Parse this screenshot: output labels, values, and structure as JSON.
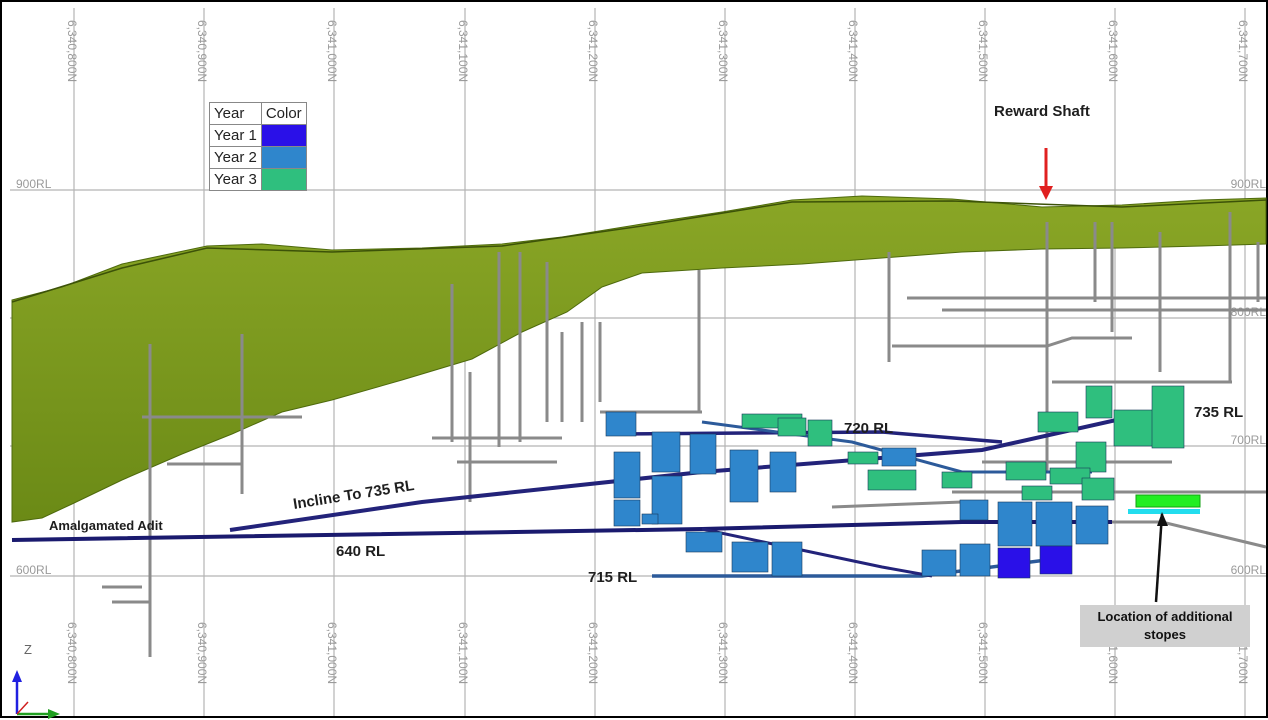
{
  "northings": [
    "6,340,800N",
    "6,340,900N",
    "6,341,000N",
    "6,341,100N",
    "6,341,200N",
    "6,341,300N",
    "6,341,400N",
    "6,341,500N",
    "6,341,600N",
    "6,341,700N"
  ],
  "rl_levels": [
    "900RL",
    "800RL",
    "700RL",
    "600RL"
  ],
  "legend": {
    "header_year": "Year",
    "header_color": "Color",
    "rows": [
      {
        "label": "Year 1",
        "color": "#2a10e8"
      },
      {
        "label": "Year 2",
        "color": "#2f86cc"
      },
      {
        "label": "Year 3",
        "color": "#2fbf7e"
      }
    ]
  },
  "annotations": {
    "reward_shaft": "Reward Shaft",
    "rl_720": "720 RL",
    "rl_735": "735 RL",
    "incline": "Incline To 735 RL",
    "adit": "Amalgamated Adit",
    "rl_640": "640 RL",
    "rl_715": "715 RL",
    "additional_stopes": "Location of additional stopes"
  },
  "axis": {
    "z": "Z"
  },
  "colors": {
    "surface_green": "#7e9c1a",
    "year1": "#2a10e8",
    "year2": "#2f86cc",
    "year3": "#2fbf7e",
    "arrow_red": "#e02020",
    "additional_stopes": "#22ee22",
    "development_grey": "#8a8a8a"
  }
}
